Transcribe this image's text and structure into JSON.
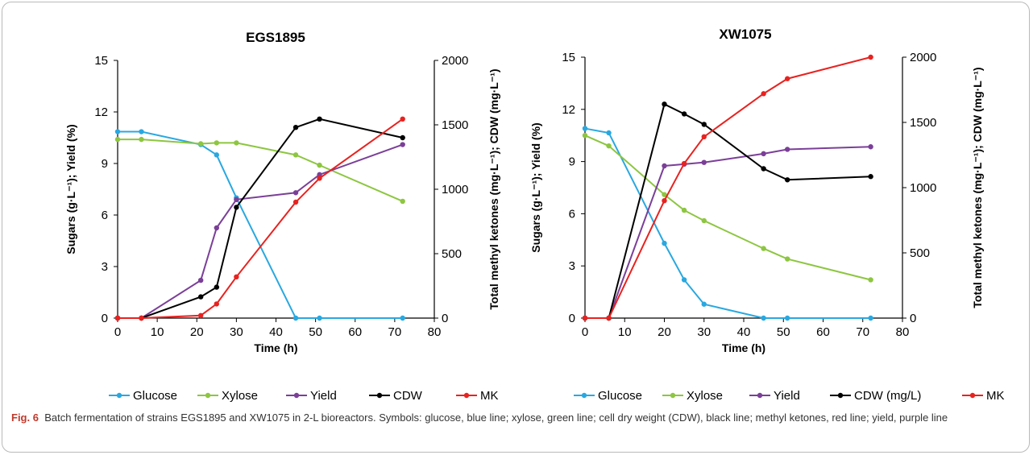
{
  "caption": {
    "label": "Fig. 6",
    "text": "Batch fermentation of strains EGS1895 and XW1075 in 2-L bioreactors. Symbols: glucose, blue line; xylose, green line; cell dry weight (CDW), black line; methyl ketones, red line; yield, purple line"
  },
  "chart_data": [
    {
      "type": "line",
      "title": "EGS1895",
      "xlabel": "Time (h)",
      "ylabel": "Sugars (g·L⁻¹); Yield (%)",
      "y2label": "Total methyl ketones (mg·L⁻¹); CDW (mg·L⁻¹)",
      "xlim": [
        0,
        80
      ],
      "ylim": [
        0,
        15
      ],
      "y2lim": [
        0,
        2000
      ],
      "xticks": [
        "0",
        "10",
        "20",
        "30",
        "40",
        "50",
        "60",
        "70",
        "80"
      ],
      "yticks": [
        "0",
        "3",
        "6",
        "9",
        "12",
        "15"
      ],
      "y2ticks": [
        "0",
        "500",
        "1000",
        "1500",
        "2000"
      ],
      "legend_position": "bottom",
      "series": [
        {
          "name": "Glucose",
          "axis": "left",
          "color": "#29a8e0",
          "x": [
            0,
            6,
            21,
            25,
            30,
            45,
            51,
            72
          ],
          "y": [
            10.85,
            10.85,
            10.1,
            9.5,
            7.0,
            0,
            0,
            0
          ]
        },
        {
          "name": "Xylose",
          "axis": "left",
          "color": "#8dc640",
          "x": [
            0,
            6,
            21,
            25,
            30,
            45,
            51,
            72
          ],
          "y": [
            10.4,
            10.4,
            10.15,
            10.2,
            10.2,
            9.5,
            8.9,
            6.8
          ]
        },
        {
          "name": "Yield",
          "axis": "left",
          "color": "#7b3f98",
          "x": [
            0,
            6,
            21,
            25,
            30,
            45,
            51,
            72
          ],
          "y": [
            0,
            0,
            2.2,
            5.25,
            6.9,
            7.3,
            8.35,
            10.1
          ]
        },
        {
          "name": "CDW",
          "axis": "right",
          "color": "#000000",
          "x": [
            0,
            6,
            21,
            25,
            30,
            45,
            51,
            72
          ],
          "y": [
            0,
            0,
            165,
            240,
            860,
            1480,
            1545,
            1400
          ]
        },
        {
          "name": "MK",
          "axis": "right",
          "color": "#e8221f",
          "x": [
            0,
            6,
            21,
            25,
            30,
            45,
            51,
            72
          ],
          "y": [
            0,
            0,
            20,
            110,
            320,
            900,
            1085,
            1545
          ]
        }
      ]
    },
    {
      "type": "line",
      "title": "XW1075",
      "xlabel": "Time (h)",
      "ylabel": "Sugars (g·L⁻¹); Yield (%)",
      "y2label": "Total methyl ketones (mg·L⁻¹); CDW (mg·L⁻¹)",
      "xlim": [
        0,
        80
      ],
      "ylim": [
        0,
        15
      ],
      "y2lim": [
        0,
        2000
      ],
      "xticks": [
        "0",
        "10",
        "20",
        "30",
        "40",
        "50",
        "60",
        "70",
        "80"
      ],
      "yticks": [
        "0",
        "3",
        "6",
        "9",
        "12",
        "15"
      ],
      "y2ticks": [
        "0",
        "500",
        "1000",
        "1500",
        "2000"
      ],
      "legend_position": "bottom",
      "series": [
        {
          "name": "Glucose",
          "axis": "left",
          "color": "#29a8e0",
          "x": [
            0,
            6,
            20,
            25,
            30,
            45,
            51,
            72
          ],
          "y": [
            10.9,
            10.65,
            4.3,
            2.2,
            0.8,
            0,
            0,
            0
          ]
        },
        {
          "name": "Xylose",
          "axis": "left",
          "color": "#8dc640",
          "x": [
            0,
            6,
            20,
            25,
            30,
            45,
            51,
            72
          ],
          "y": [
            10.5,
            9.9,
            7.1,
            6.2,
            5.6,
            4.0,
            3.4,
            2.2
          ]
        },
        {
          "name": "Yield",
          "axis": "left",
          "color": "#7b3f98",
          "x": [
            0,
            6,
            20,
            25,
            30,
            45,
            51,
            72
          ],
          "y": [
            0,
            0,
            8.75,
            8.85,
            8.95,
            9.45,
            9.7,
            9.85
          ]
        },
        {
          "name": "CDW (mg/L)",
          "axis": "right",
          "color": "#000000",
          "x": [
            0,
            6,
            20,
            25,
            30,
            45,
            51,
            72
          ],
          "y": [
            0,
            0,
            1640,
            1565,
            1485,
            1145,
            1060,
            1085
          ]
        },
        {
          "name": "MK",
          "axis": "right",
          "color": "#e8221f",
          "x": [
            0,
            6,
            20,
            25,
            30,
            45,
            51,
            72
          ],
          "y": [
            0,
            0,
            900,
            1185,
            1390,
            1720,
            1835,
            2000
          ]
        }
      ]
    }
  ]
}
